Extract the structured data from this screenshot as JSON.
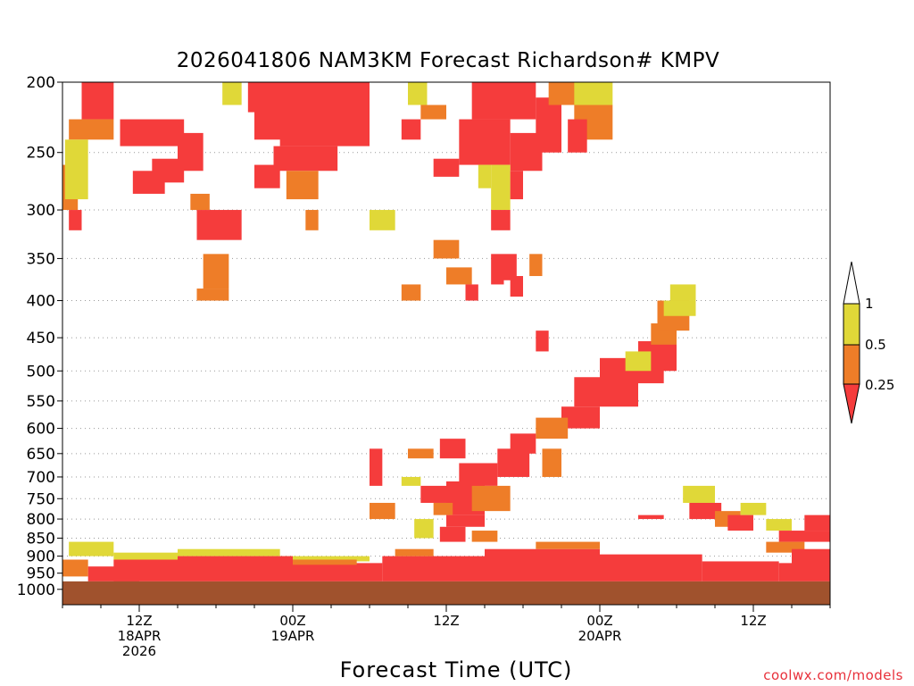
{
  "chart_data": {
    "type": "heatmap",
    "title": "2026041806 NAM3KM Forecast Richardson# KMPV",
    "xlabel": "Forecast Time (UTC)",
    "ylabel": "",
    "y_scale": "log-pressure",
    "ylim": [
      1050,
      200
    ],
    "y_ticks": [
      200,
      250,
      300,
      350,
      400,
      450,
      500,
      550,
      600,
      650,
      700,
      750,
      800,
      850,
      900,
      950,
      1000
    ],
    "x_ticks": [
      {
        "hour": 6,
        "line1": "12Z",
        "line2": "18APR",
        "line3": "2026"
      },
      {
        "hour": 18,
        "line1": "00Z",
        "line2": "19APR",
        "line3": ""
      },
      {
        "hour": 30,
        "line1": "12Z",
        "line2": "",
        "line3": ""
      },
      {
        "hour": 42,
        "line1": "00Z",
        "line2": "20APR",
        "line3": ""
      },
      {
        "hour": 54,
        "line1": "12Z",
        "line2": "",
        "line3": ""
      }
    ],
    "xlim": [
      0,
      60
    ],
    "grid": "dotted horizontal at pressure ticks",
    "legend": {
      "placement": "right",
      "labels": [
        "1",
        "0.5",
        "0.25"
      ],
      "bins": [
        {
          "range": "0.5-1",
          "color": "#e0d838"
        },
        {
          "range": "0.25-0.5",
          "color": "#ee7d28"
        },
        {
          "range": "<0.25",
          "color": "#f53c3c"
        }
      ]
    },
    "ground": {
      "color": "#a0522d",
      "top_pressure": 975
    },
    "colors": {
      "high": "#e0d838",
      "mid": "#ee7d28",
      "low": "#f53c3c"
    },
    "cells": [
      {
        "t": [
          1.5,
          4.0
        ],
        "p": [
          200,
          225
        ],
        "c": "low"
      },
      {
        "t": [
          0.5,
          4.0
        ],
        "p": [
          225,
          240
        ],
        "c": "mid"
      },
      {
        "t": [
          0,
          1.2
        ],
        "p": [
          260,
          300
        ],
        "c": "mid"
      },
      {
        "t": [
          0.2,
          2.0
        ],
        "p": [
          240,
          290
        ],
        "c": "high"
      },
      {
        "t": [
          0.5,
          1.5
        ],
        "p": [
          300,
          320
        ],
        "c": "low"
      },
      {
        "t": [
          4.5,
          9.5
        ],
        "p": [
          225,
          245
        ],
        "c": "low"
      },
      {
        "t": [
          9.0,
          11.0
        ],
        "p": [
          235,
          265
        ],
        "c": "low"
      },
      {
        "t": [
          7.0,
          9.5
        ],
        "p": [
          255,
          275
        ],
        "c": "low"
      },
      {
        "t": [
          5.5,
          8.0
        ],
        "p": [
          265,
          285
        ],
        "c": "low"
      },
      {
        "t": [
          10.0,
          11.5
        ],
        "p": [
          285,
          300
        ],
        "c": "mid"
      },
      {
        "t": [
          10.5,
          14.0
        ],
        "p": [
          300,
          330
        ],
        "c": "low"
      },
      {
        "t": [
          11.0,
          13.0
        ],
        "p": [
          345,
          385
        ],
        "c": "mid"
      },
      {
        "t": [
          10.5,
          13.0
        ],
        "p": [
          385,
          400
        ],
        "c": "mid"
      },
      {
        "t": [
          15.0,
          17.5
        ],
        "p": [
          200,
          240
        ],
        "c": "low"
      },
      {
        "t": [
          17.0,
          24.0
        ],
        "p": [
          200,
          245
        ],
        "c": "low"
      },
      {
        "t": [
          16.5,
          21.5
        ],
        "p": [
          245,
          265
        ],
        "c": "low"
      },
      {
        "t": [
          17.5,
          20.0
        ],
        "p": [
          265,
          290
        ],
        "c": "mid"
      },
      {
        "t": [
          15.0,
          17.0
        ],
        "p": [
          260,
          280
        ],
        "c": "low"
      },
      {
        "t": [
          19.0,
          20.0
        ],
        "p": [
          300,
          320
        ],
        "c": "mid"
      },
      {
        "t": [
          21.5,
          24.0
        ],
        "p": [
          205,
          240
        ],
        "c": "low"
      },
      {
        "t": [
          12.5,
          14.0
        ],
        "p": [
          200,
          215
        ],
        "c": "high"
      },
      {
        "t": [
          14.5,
          15.5
        ],
        "p": [
          200,
          220
        ],
        "c": "low"
      },
      {
        "t": [
          24.0,
          26.0
        ],
        "p": [
          300,
          320
        ],
        "c": "high"
      },
      {
        "t": [
          26.5,
          28.0
        ],
        "p": [
          225,
          240
        ],
        "c": "low"
      },
      {
        "t": [
          27.0,
          28.5
        ],
        "p": [
          200,
          215
        ],
        "c": "high"
      },
      {
        "t": [
          28.0,
          30.0
        ],
        "p": [
          215,
          225
        ],
        "c": "mid"
      },
      {
        "t": [
          29.0,
          31.0
        ],
        "p": [
          255,
          270
        ],
        "c": "low"
      },
      {
        "t": [
          32.0,
          37.0
        ],
        "p": [
          200,
          225
        ],
        "c": "low"
      },
      {
        "t": [
          31.0,
          35.0
        ],
        "p": [
          225,
          260
        ],
        "c": "low"
      },
      {
        "t": [
          35.0,
          37.5
        ],
        "p": [
          235,
          265
        ],
        "c": "low"
      },
      {
        "t": [
          37.0,
          39.0
        ],
        "p": [
          210,
          250
        ],
        "c": "low"
      },
      {
        "t": [
          39.0,
          43.0
        ],
        "p": [
          200,
          215
        ],
        "c": "high"
      },
      {
        "t": [
          38.0,
          40.0
        ],
        "p": [
          200,
          215
        ],
        "c": "mid"
      },
      {
        "t": [
          40.0,
          43.0
        ],
        "p": [
          215,
          240
        ],
        "c": "mid"
      },
      {
        "t": [
          39.5,
          41.0
        ],
        "p": [
          225,
          250
        ],
        "c": "low"
      },
      {
        "t": [
          32.5,
          33.5
        ],
        "p": [
          260,
          280
        ],
        "c": "high"
      },
      {
        "t": [
          33.5,
          35.0
        ],
        "p": [
          260,
          300
        ],
        "c": "high"
      },
      {
        "t": [
          33.5,
          35.0
        ],
        "p": [
          300,
          320
        ],
        "c": "low"
      },
      {
        "t": [
          35.0,
          36.0
        ],
        "p": [
          265,
          290
        ],
        "c": "low"
      },
      {
        "t": [
          29.0,
          31.0
        ],
        "p": [
          330,
          350
        ],
        "c": "mid"
      },
      {
        "t": [
          30.0,
          32.0
        ],
        "p": [
          360,
          380
        ],
        "c": "mid"
      },
      {
        "t": [
          33.5,
          34.5
        ],
        "p": [
          345,
          380
        ],
        "c": "low"
      },
      {
        "t": [
          34.5,
          35.5
        ],
        "p": [
          345,
          375
        ],
        "c": "low"
      },
      {
        "t": [
          35.0,
          36.0
        ],
        "p": [
          370,
          395
        ],
        "c": "low"
      },
      {
        "t": [
          36.5,
          37.5
        ],
        "p": [
          345,
          370
        ],
        "c": "mid"
      },
      {
        "t": [
          26.5,
          28.0
        ],
        "p": [
          380,
          400
        ],
        "c": "mid"
      },
      {
        "t": [
          31.5,
          32.5
        ],
        "p": [
          380,
          400
        ],
        "c": "low"
      },
      {
        "t": [
          37.0,
          38.0
        ],
        "p": [
          440,
          470
        ],
        "c": "low"
      },
      {
        "t": [
          40.0,
          45.0
        ],
        "p": [
          510,
          560
        ],
        "c": "low"
      },
      {
        "t": [
          42.0,
          47.0
        ],
        "p": [
          480,
          520
        ],
        "c": "low"
      },
      {
        "t": [
          45.0,
          48.0
        ],
        "p": [
          455,
          500
        ],
        "c": "low"
      },
      {
        "t": [
          46.0,
          48.0
        ],
        "p": [
          430,
          460
        ],
        "c": "mid"
      },
      {
        "t": [
          46.5,
          49.0
        ],
        "p": [
          400,
          440
        ],
        "c": "mid"
      },
      {
        "t": [
          47.0,
          49.5
        ],
        "p": [
          400,
          420
        ],
        "c": "high"
      },
      {
        "t": [
          47.5,
          49.5
        ],
        "p": [
          380,
          400
        ],
        "c": "high"
      },
      {
        "t": [
          44.0,
          46.0
        ],
        "p": [
          470,
          500
        ],
        "c": "high"
      },
      {
        "t": [
          39.0,
          42.0
        ],
        "p": [
          560,
          600
        ],
        "c": "low"
      },
      {
        "t": [
          37.0,
          39.5
        ],
        "p": [
          580,
          620
        ],
        "c": "mid"
      },
      {
        "t": [
          35.0,
          37.0
        ],
        "p": [
          610,
          650
        ],
        "c": "low"
      },
      {
        "t": [
          34.0,
          36.5
        ],
        "p": [
          640,
          700
        ],
        "c": "low"
      },
      {
        "t": [
          31.0,
          34.0
        ],
        "p": [
          670,
          720
        ],
        "c": "low"
      },
      {
        "t": [
          30.0,
          33.0
        ],
        "p": [
          710,
          790
        ],
        "c": "low"
      },
      {
        "t": [
          28.0,
          30.0
        ],
        "p": [
          720,
          760
        ],
        "c": "low"
      },
      {
        "t": [
          32.0,
          35.0
        ],
        "p": [
          720,
          780
        ],
        "c": "mid"
      },
      {
        "t": [
          37.5,
          39.0
        ],
        "p": [
          640,
          700
        ],
        "c": "mid"
      },
      {
        "t": [
          24.0,
          25.0
        ],
        "p": [
          640,
          720
        ],
        "c": "low"
      },
      {
        "t": [
          26.5,
          28.0
        ],
        "p": [
          700,
          720
        ],
        "c": "high"
      },
      {
        "t": [
          27.0,
          29.0
        ],
        "p": [
          640,
          660
        ],
        "c": "mid"
      },
      {
        "t": [
          29.5,
          31.5
        ],
        "p": [
          620,
          660
        ],
        "c": "low"
      },
      {
        "t": [
          29.0,
          30.5
        ],
        "p": [
          760,
          790
        ],
        "c": "mid"
      },
      {
        "t": [
          30.0,
          33.0
        ],
        "p": [
          790,
          820
        ],
        "c": "low"
      },
      {
        "t": [
          29.5,
          31.5
        ],
        "p": [
          820,
          860
        ],
        "c": "low"
      },
      {
        "t": [
          32.0,
          34.0
        ],
        "p": [
          830,
          860
        ],
        "c": "mid"
      },
      {
        "t": [
          24.0,
          26.0
        ],
        "p": [
          760,
          800
        ],
        "c": "mid"
      },
      {
        "t": [
          27.5,
          29.0
        ],
        "p": [
          800,
          850
        ],
        "c": "high"
      },
      {
        "t": [
          48.5,
          51.0
        ],
        "p": [
          720,
          760
        ],
        "c": "high"
      },
      {
        "t": [
          49.0,
          51.5
        ],
        "p": [
          760,
          800
        ],
        "c": "low"
      },
      {
        "t": [
          51.0,
          53.0
        ],
        "p": [
          780,
          820
        ],
        "c": "mid"
      },
      {
        "t": [
          53.0,
          55.0
        ],
        "p": [
          760,
          790
        ],
        "c": "high"
      },
      {
        "t": [
          52.0,
          54.0
        ],
        "p": [
          790,
          830
        ],
        "c": "low"
      },
      {
        "t": [
          45.0,
          47.0
        ],
        "p": [
          790,
          800
        ],
        "c": "low"
      },
      {
        "t": [
          55.0,
          57.0
        ],
        "p": [
          800,
          830
        ],
        "c": "high"
      },
      {
        "t": [
          56.0,
          60.0
        ],
        "p": [
          830,
          860
        ],
        "c": "low"
      },
      {
        "t": [
          58.0,
          60.0
        ],
        "p": [
          790,
          830
        ],
        "c": "low"
      },
      {
        "t": [
          55.0,
          58.0
        ],
        "p": [
          860,
          890
        ],
        "c": "mid"
      },
      {
        "t": [
          57.0,
          60.0
        ],
        "p": [
          880,
          930
        ],
        "c": "low"
      },
      {
        "t": [
          0.5,
          4.0
        ],
        "p": [
          860,
          900
        ],
        "c": "high"
      },
      {
        "t": [
          4.0,
          9.0
        ],
        "p": [
          890,
          910
        ],
        "c": "high"
      },
      {
        "t": [
          9.0,
          17.0
        ],
        "p": [
          880,
          900
        ],
        "c": "high"
      },
      {
        "t": [
          17.0,
          24.0
        ],
        "p": [
          900,
          915
        ],
        "c": "high"
      },
      {
        "t": [
          2.0,
          6.0
        ],
        "p": [
          930,
          975
        ],
        "c": "low"
      },
      {
        "t": [
          4.0,
          9.0
        ],
        "p": [
          910,
          975
        ],
        "c": "low"
      },
      {
        "t": [
          9.0,
          18.0
        ],
        "p": [
          900,
          975
        ],
        "c": "low"
      },
      {
        "t": [
          18.0,
          25.0
        ],
        "p": [
          920,
          975
        ],
        "c": "low"
      },
      {
        "t": [
          25.0,
          33.0
        ],
        "p": [
          900,
          975
        ],
        "c": "low"
      },
      {
        "t": [
          33.0,
          42.0
        ],
        "p": [
          880,
          975
        ],
        "c": "low"
      },
      {
        "t": [
          42.0,
          50.0
        ],
        "p": [
          895,
          975
        ],
        "c": "low"
      },
      {
        "t": [
          50.0,
          56.0
        ],
        "p": [
          915,
          975
        ],
        "c": "low"
      },
      {
        "t": [
          56.0,
          60.0
        ],
        "p": [
          920,
          975
        ],
        "c": "low"
      },
      {
        "t": [
          0,
          2.0
        ],
        "p": [
          910,
          960
        ],
        "c": "mid"
      },
      {
        "t": [
          18.0,
          23.0
        ],
        "p": [
          910,
          925
        ],
        "c": "mid"
      },
      {
        "t": [
          37.0,
          42.0
        ],
        "p": [
          860,
          880
        ],
        "c": "mid"
      },
      {
        "t": [
          26.0,
          29.0
        ],
        "p": [
          880,
          900
        ],
        "c": "mid"
      }
    ]
  }
}
